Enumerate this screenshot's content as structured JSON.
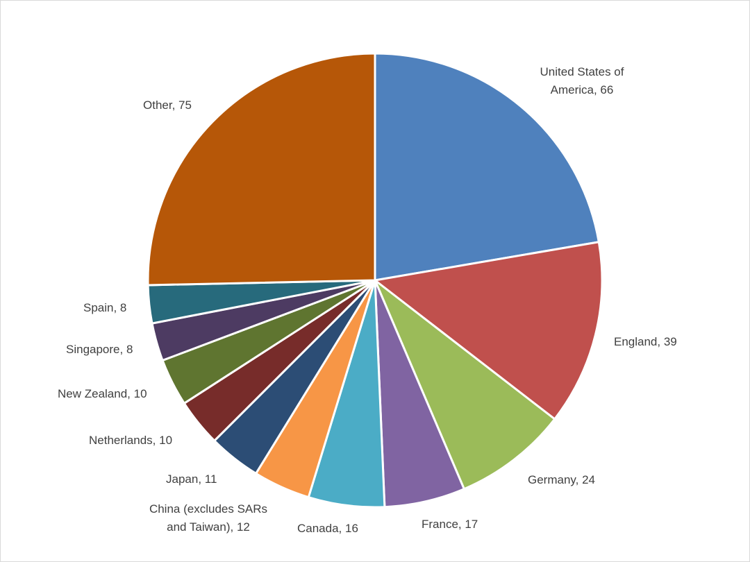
{
  "chart_data": {
    "type": "pie",
    "title": "",
    "categories": [
      "United States of America",
      "England",
      "Germany",
      "France",
      "Canada",
      "China (excludes SARs and Taiwan)",
      "Japan",
      "Netherlands",
      "New Zealand",
      "Singapore",
      "Spain",
      "Other"
    ],
    "values": [
      66,
      39,
      24,
      17,
      16,
      12,
      11,
      10,
      10,
      8,
      8,
      75
    ],
    "colors": [
      "#4F81BD",
      "#C0504D",
      "#9BBB59",
      "#8064A2",
      "#4BACC6",
      "#F79646",
      "#2C4D75",
      "#772C2A",
      "#5F7530",
      "#4D3B62",
      "#276A7C",
      "#B65708"
    ],
    "data_labels": [
      "United States of America, 66",
      "England, 39",
      "Germany, 24",
      "France, 17",
      "Canada, 16",
      "China (excludes SARs and Taiwan), 12",
      "Japan, 11",
      "Netherlands, 10",
      "New Zealand, 10",
      "Singapore, 8",
      "Spain, 8",
      "Other, 75"
    ],
    "start_angle_deg": 0,
    "direction": "clockwise",
    "legend": "none"
  },
  "labels": {
    "usa_line1": "United States of",
    "usa_line2": "America, 66",
    "england": "England, 39",
    "germany": "Germany, 24",
    "france": "France, 17",
    "canada": "Canada, 16",
    "china_line1": "China (excludes SARs",
    "china_line2": "and Taiwan), 12",
    "japan": "Japan, 11",
    "netherlands": "Netherlands, 10",
    "new_zealand": "New Zealand, 10",
    "singapore": "Singapore, 8",
    "spain": "Spain, 8",
    "other": "Other, 75"
  }
}
